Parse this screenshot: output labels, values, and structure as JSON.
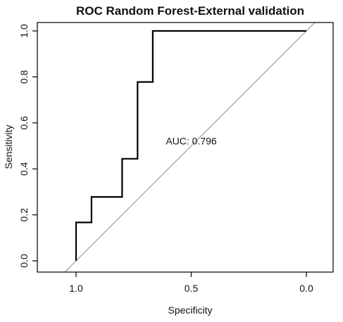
{
  "chart_data": {
    "type": "line",
    "title": "ROC Random Forest-External validation",
    "xlabel": "Specificity",
    "ylabel": "Sensitivity",
    "xlim": [
      1.05,
      -0.05
    ],
    "ylim": [
      0.0,
      1.0
    ],
    "x_axis_reversed": true,
    "x_ticks": [
      1.0,
      0.5,
      0.0
    ],
    "x_tick_labels": [
      "1.0",
      "0.5",
      "0.0"
    ],
    "y_ticks": [
      0.0,
      0.2,
      0.4,
      0.6,
      0.8,
      1.0
    ],
    "y_tick_labels": [
      "0.0",
      "0.2",
      "0.4",
      "0.6",
      "0.8",
      "1.0"
    ],
    "grid": false,
    "legend": "none",
    "series": [
      {
        "role": "roc-curve",
        "color": "#000000",
        "specificity": [
          1.0,
          1.0,
          0.933,
          0.933,
          0.8,
          0.8,
          0.733,
          0.733,
          0.667,
          0.667,
          0.0
        ],
        "sensitivity": [
          0.0,
          0.167,
          0.167,
          0.278,
          0.278,
          0.444,
          0.444,
          0.778,
          0.778,
          1.0,
          1.0
        ]
      },
      {
        "role": "reference-diagonal",
        "color": "#a0a0a0",
        "specificity": [
          1.05,
          -0.05
        ],
        "sensitivity": [
          -0.05,
          1.05
        ]
      }
    ],
    "annotations": [
      {
        "text": "AUC: 0.796",
        "x": 0.5,
        "y": 0.5
      }
    ]
  }
}
